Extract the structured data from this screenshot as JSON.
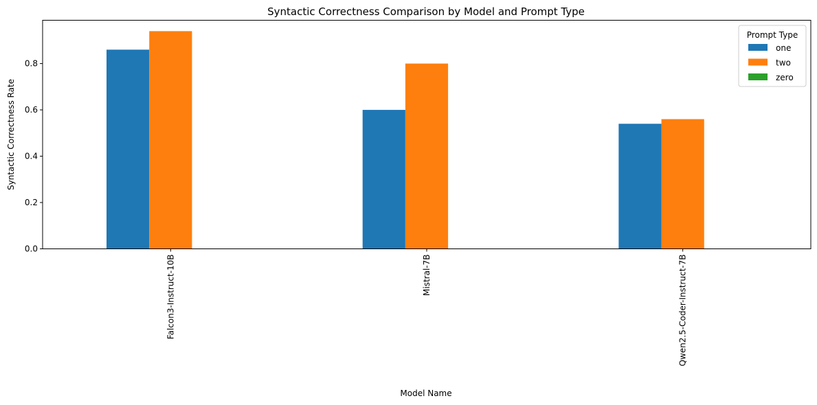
{
  "chart_data": {
    "type": "bar",
    "title": "Syntactic Correctness Comparison by Model and Prompt Type",
    "xlabel": "Model Name",
    "ylabel": "Syntactic Correctness Rate",
    "categories": [
      "Falcon3-Instruct-10B",
      "Mistral-7B",
      "Qwen2.5-Coder-Instruct-7B"
    ],
    "series": [
      {
        "name": "one",
        "values": [
          0.86,
          0.6,
          0.54
        ],
        "color": "#1f77b4"
      },
      {
        "name": "two",
        "values": [
          0.94,
          0.8,
          0.56
        ],
        "color": "#ff7f0e"
      },
      {
        "name": "zero",
        "values": [
          0,
          0,
          0
        ],
        "color": "#2ca02c"
      }
    ],
    "ylim": [
      0,
      0.987
    ],
    "yticks": [
      "0.0",
      "0.2",
      "0.4",
      "0.6",
      "0.8"
    ],
    "grid": false,
    "legend": {
      "title": "Prompt Type",
      "position": "top-right"
    }
  }
}
